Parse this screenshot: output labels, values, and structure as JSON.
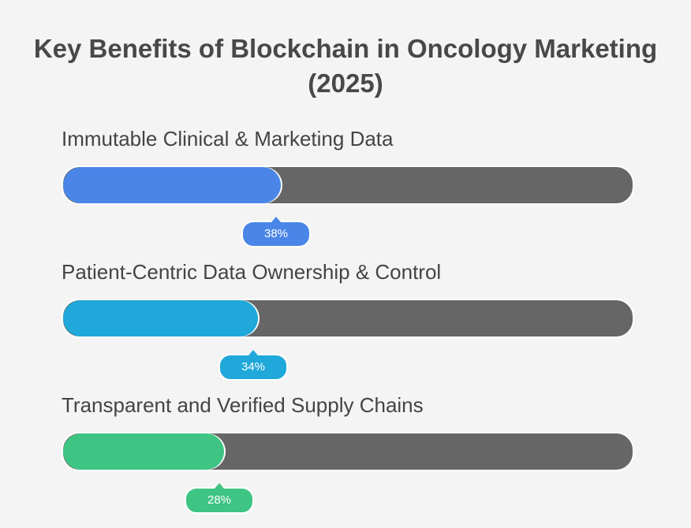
{
  "chart_data": {
    "type": "bar",
    "title": "Key Benefits of Blockchain in Oncology Marketing (2025)",
    "xlabel": "",
    "ylabel": "",
    "ylim": [
      0,
      100
    ],
    "categories": [
      "Immutable Clinical & Marketing Data",
      "Patient-Centric Data Ownership & Control",
      "Transparent and Verified Supply Chains"
    ],
    "values": [
      38,
      34,
      28
    ],
    "value_labels": [
      "38%",
      "34%",
      "28%"
    ],
    "colors": [
      "#4a86e8",
      "#1fa8d9",
      "#3ec483"
    ],
    "track_color": "#666666",
    "grid": false
  }
}
